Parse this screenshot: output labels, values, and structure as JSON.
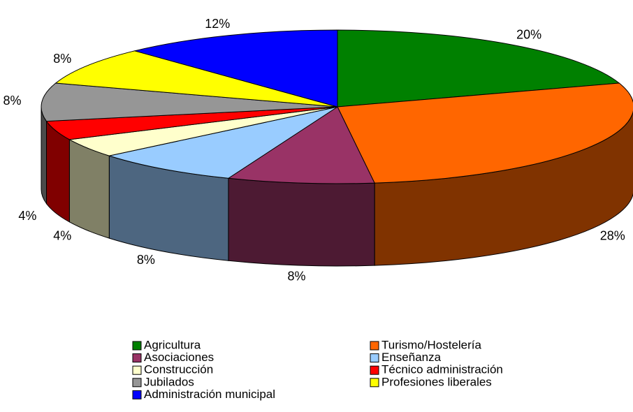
{
  "chart_data": {
    "type": "pie3d",
    "categories": [
      "Agricultura",
      "Turismo/Hostelería",
      "Asociaciones",
      "Enseñanza",
      "Construcción",
      "Técnico administración",
      "Jubilados",
      "Profesiones liberales",
      "Administración municipal"
    ],
    "values": [
      20,
      28,
      8,
      8,
      4,
      4,
      8,
      8,
      12
    ],
    "value_labels": [
      "20%",
      "28%",
      "8%",
      "8%",
      "4%",
      "4%",
      "8%",
      "8%",
      "12%"
    ],
    "colors": [
      "#008000",
      "#FF6600",
      "#993366",
      "#99CCFF",
      "#FFFFCC",
      "#FF0000",
      "#969696",
      "#FFFF00",
      "#0000FF"
    ]
  }
}
